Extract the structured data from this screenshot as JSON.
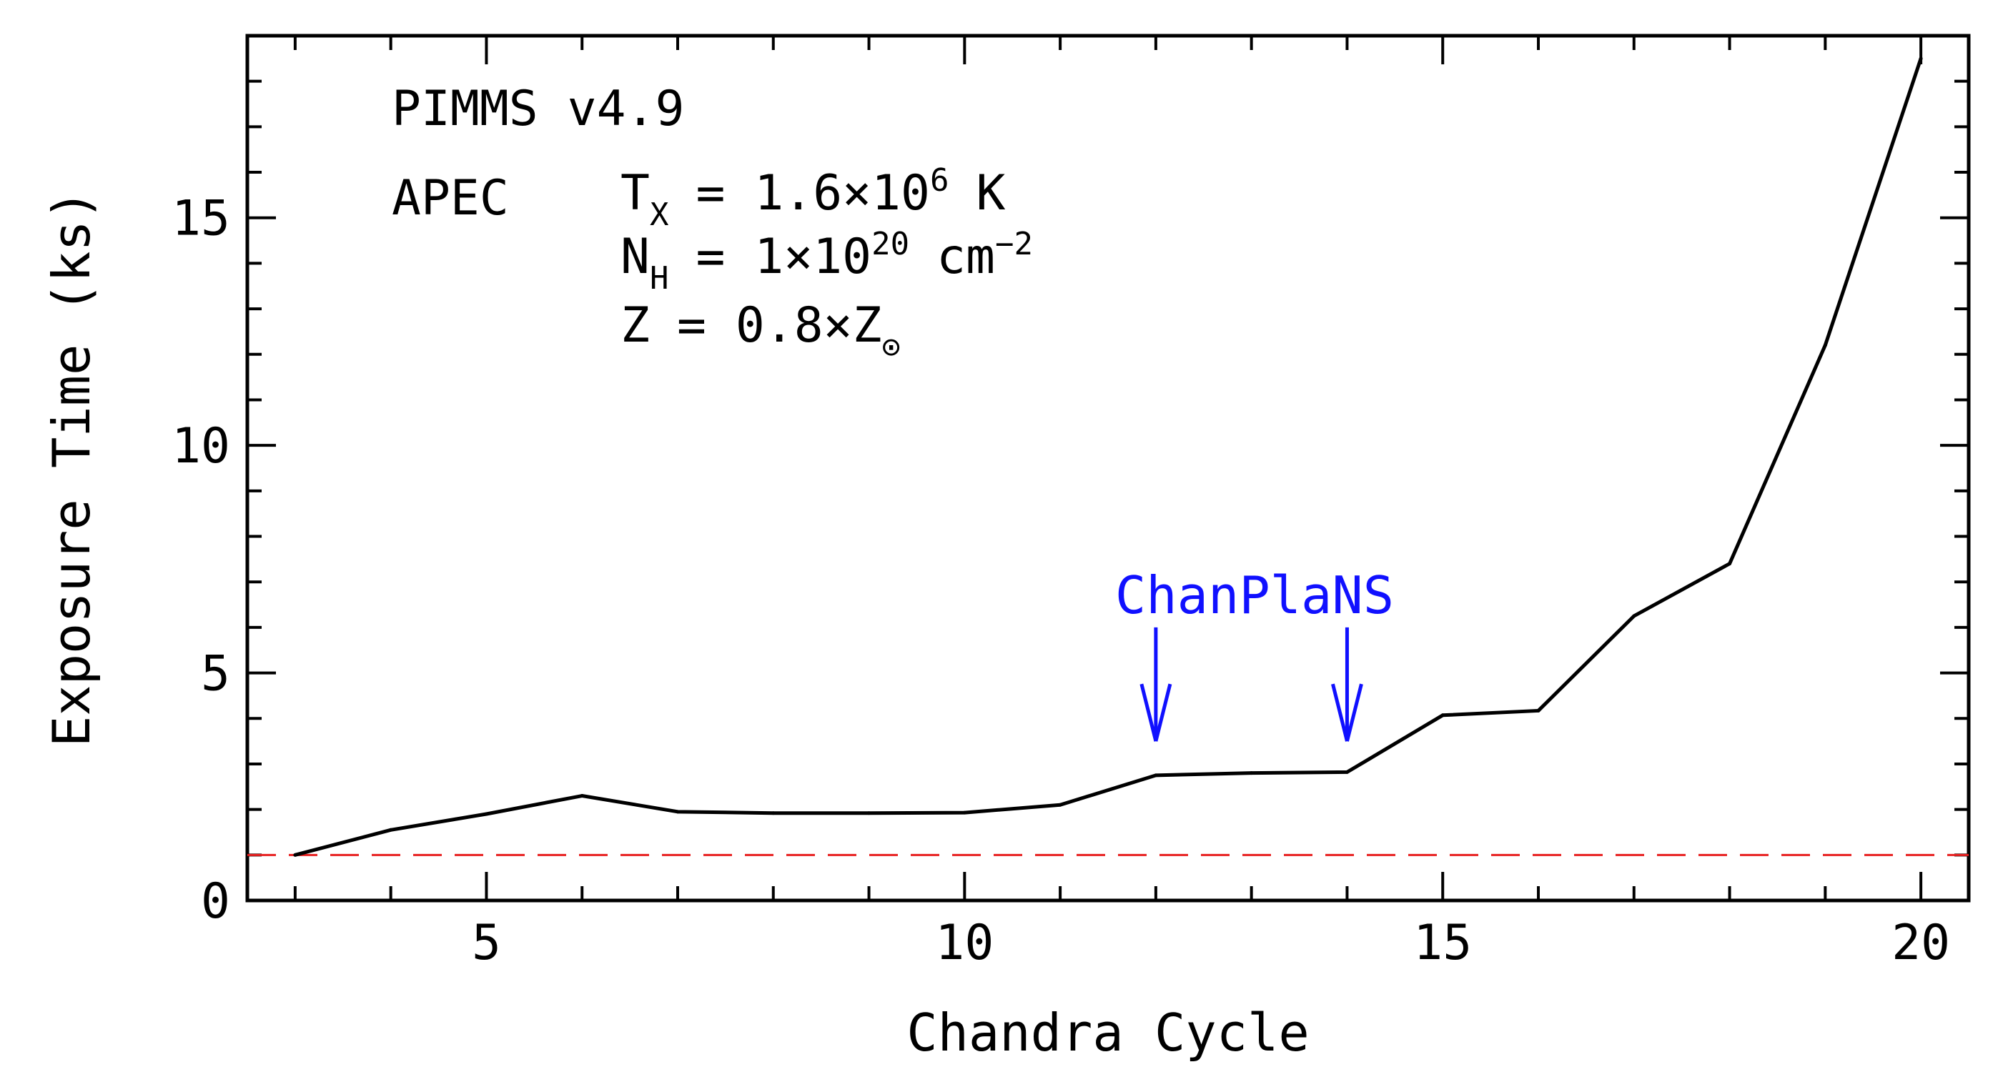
{
  "chart_data": {
    "type": "line",
    "title": "",
    "xlabel": "Chandra Cycle",
    "ylabel": "Exposure Time (ks)",
    "xlim": [
      2.5,
      20.5
    ],
    "ylim": [
      0,
      19
    ],
    "x_major_ticks": [
      5,
      10,
      15,
      20
    ],
    "x_tick_labels": [
      "5",
      "10",
      "15",
      "20"
    ],
    "x_minor_step": 1,
    "y_major_ticks": [
      0,
      5,
      10,
      15
    ],
    "y_tick_labels": [
      "0",
      "5",
      "10",
      "15"
    ],
    "y_minor_step": 1,
    "series": [
      {
        "name": "Exposure Time",
        "color": "#000000",
        "x": [
          3,
          4,
          5,
          6,
          7,
          8,
          9,
          10,
          11,
          12,
          13,
          14,
          15,
          16,
          17,
          18,
          19,
          20
        ],
        "y": [
          1.0,
          1.55,
          1.9,
          2.3,
          1.95,
          1.92,
          1.92,
          1.93,
          2.1,
          2.75,
          2.8,
          2.82,
          4.07,
          4.17,
          6.25,
          7.4,
          12.2,
          18.5
        ]
      }
    ],
    "reference_line": {
      "y": 1.0,
      "color": "#e82020",
      "style": "dashed"
    },
    "annotations": {
      "software": "PIMMS v4.9",
      "model": "APEC",
      "tx_label": "T",
      "tx_sub": "X",
      "tx_value": "= 1.6×10",
      "tx_exp": "6",
      "tx_unit": "K",
      "nh_label": "N",
      "nh_sub": "H",
      "nh_value": "= 1×10",
      "nh_exp": "20",
      "nh_unit": "cm",
      "nh_unit_exp": "−2",
      "z_label": "Z",
      "z_value": "= 0.8×Z",
      "z_sub": "⊙"
    },
    "marker_label": "ChanPlaNS",
    "marker_color": "#1010ff",
    "markers": [
      {
        "x": 12,
        "y_from": 6.0,
        "y_to": 3.5
      },
      {
        "x": 14,
        "y_from": 6.0,
        "y_to": 3.5
      }
    ]
  }
}
